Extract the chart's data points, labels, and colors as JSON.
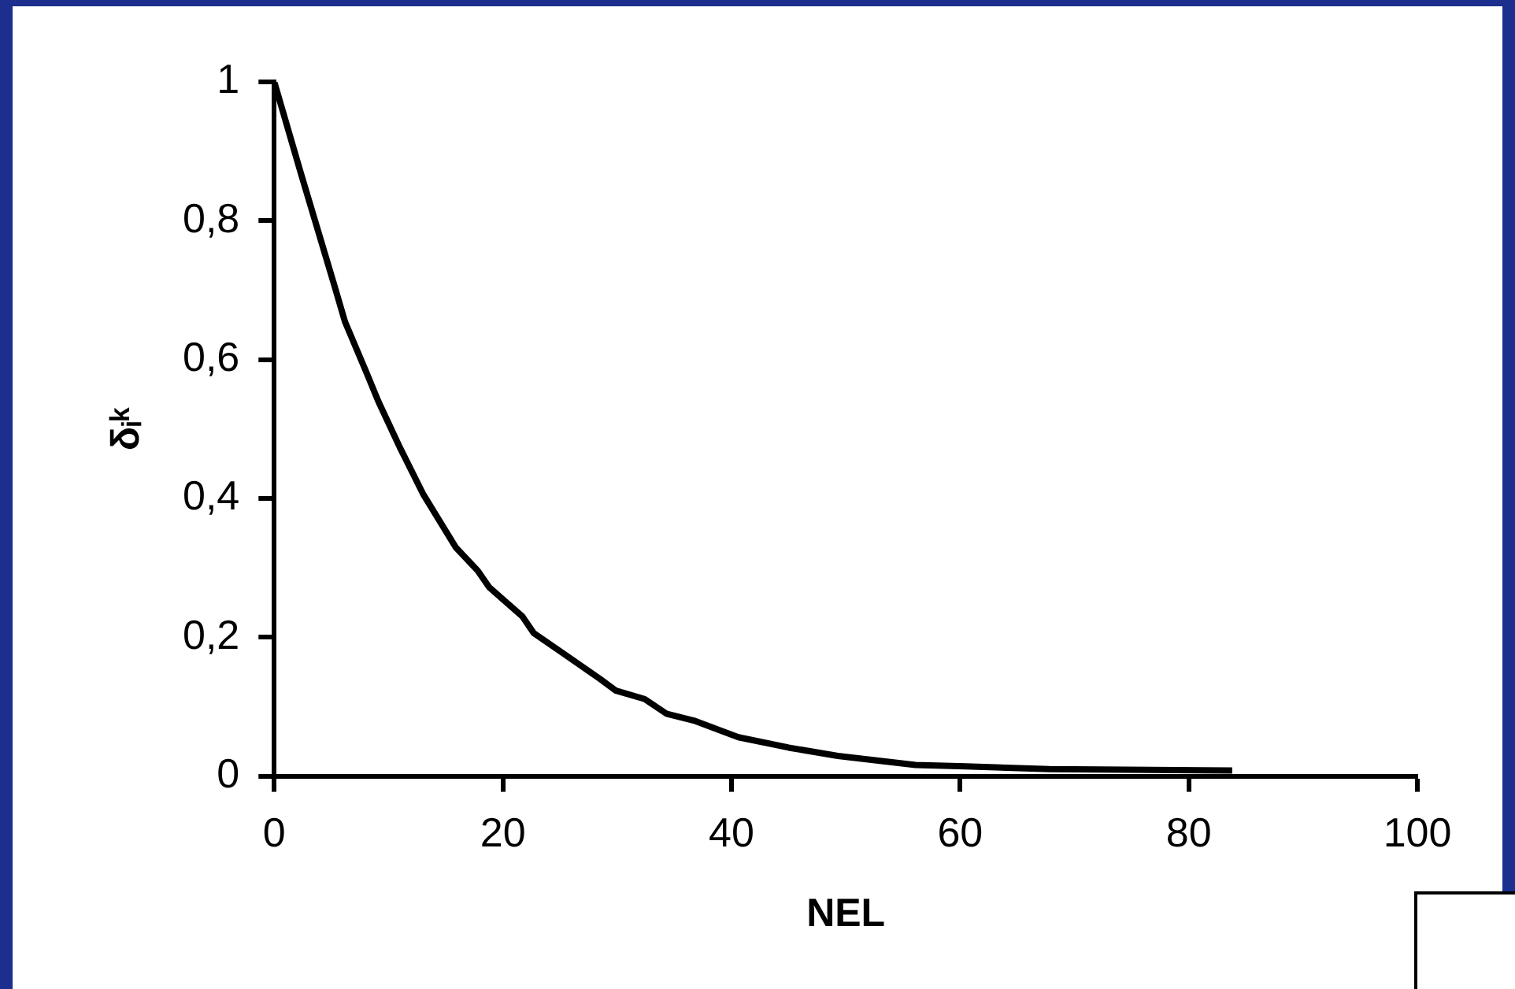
{
  "chart_data": {
    "type": "line",
    "xlabel": "NEL",
    "ylabel": "δᵢᵏ",
    "x": [
      0,
      2.3,
      5.2,
      6.2,
      8.1,
      9.1,
      11,
      13,
      15.9,
      17.8,
      18.8,
      21.7,
      22.7,
      25.6,
      28.5,
      29.9,
      32.4,
      34.3,
      36.7,
      40.6,
      45,
      49.3,
      56.1,
      60.5,
      67.8,
      83.8
    ],
    "series": [
      {
        "color": "#000000",
        "values": [
          1,
          0.87,
          0.71,
          0.654,
          0.58,
          0.54,
          0.473,
          0.407,
          0.329,
          0.296,
          0.272,
          0.23,
          0.206,
          0.173,
          0.14,
          0.123,
          0.111,
          0.09,
          0.08,
          0.056,
          0.041,
          0.029,
          0.016,
          0.014,
          0.01,
          0.008
        ]
      }
    ],
    "xlim": [
      0,
      100
    ],
    "ylim": [
      0,
      1
    ],
    "xticks": [
      0,
      20,
      40,
      60,
      80,
      100
    ],
    "yticks": [
      0,
      {
        "value": 0.2,
        "label": "0,2"
      },
      {
        "value": 0.4,
        "label": "0,4"
      },
      {
        "value": 0.6,
        "label": "0,6"
      },
      {
        "value": 0.8,
        "label": "0,8"
      },
      1
    ],
    "grid": false,
    "marker": "none",
    "line_style": "solid"
  }
}
